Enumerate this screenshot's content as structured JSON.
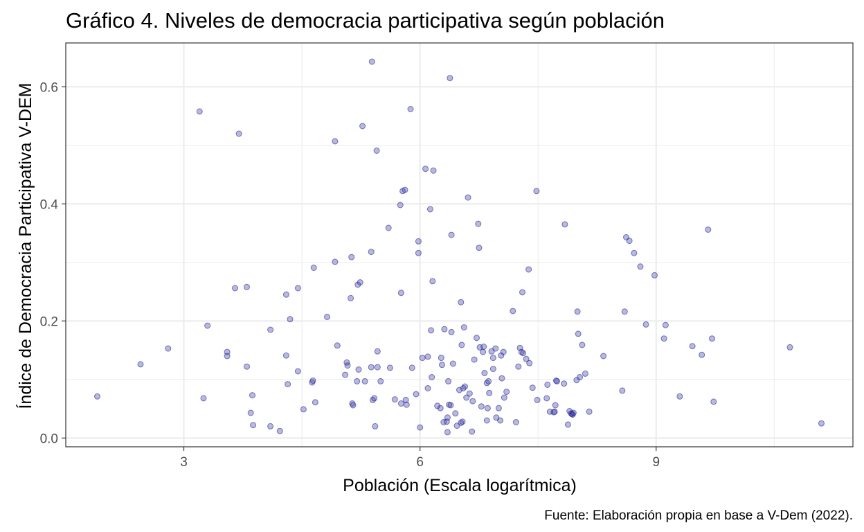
{
  "chart_data": {
    "type": "scatter",
    "title": "Gráfico 4. Niveles de democracia participativa según población",
    "xlabel": "Población (Escala logarítmica)",
    "ylabel": "Índice de Democracia Participativa V-DEM",
    "caption": "Fuente: Elaboración propia en base a V-Dem (2022).",
    "xlim": [
      1.5,
      11.5
    ],
    "ylim": [
      -0.015,
      0.675
    ],
    "x_ticks": [
      3,
      6,
      9
    ],
    "x_tick_labels": [
      "3",
      "6",
      "9"
    ],
    "y_ticks": [
      0.0,
      0.2,
      0.4,
      0.6
    ],
    "y_tick_labels": [
      "0.0",
      "0.2",
      "0.4",
      "0.6"
    ],
    "grid": true,
    "legend": "none",
    "colors": {
      "point_fill": "#3333aa",
      "point_stroke": "#1a1a80",
      "grid": "#ebebeb",
      "panel_border": "#333333",
      "tick_text": "#4d4d4d"
    },
    "points": [
      [
        1.9,
        0.071
      ],
      [
        2.45,
        0.126
      ],
      [
        2.8,
        0.153
      ],
      [
        3.2,
        0.558
      ],
      [
        3.25,
        0.068
      ],
      [
        3.3,
        0.192
      ],
      [
        3.55,
        0.147
      ],
      [
        3.55,
        0.14
      ],
      [
        3.65,
        0.256
      ],
      [
        3.7,
        0.52
      ],
      [
        3.8,
        0.258
      ],
      [
        3.8,
        0.122
      ],
      [
        3.85,
        0.043
      ],
      [
        3.87,
        0.073
      ],
      [
        3.88,
        0.022
      ],
      [
        4.1,
        0.02
      ],
      [
        4.1,
        0.185
      ],
      [
        4.22,
        0.012
      ],
      [
        4.3,
        0.245
      ],
      [
        4.3,
        0.141
      ],
      [
        4.32,
        0.092
      ],
      [
        4.35,
        0.203
      ],
      [
        4.45,
        0.114
      ],
      [
        4.45,
        0.256
      ],
      [
        4.52,
        0.049
      ],
      [
        4.63,
        0.095
      ],
      [
        4.64,
        0.098
      ],
      [
        4.65,
        0.291
      ],
      [
        4.67,
        0.061
      ],
      [
        4.82,
        0.207
      ],
      [
        4.92,
        0.301
      ],
      [
        4.92,
        0.507
      ],
      [
        4.95,
        0.158
      ],
      [
        5.05,
        0.108
      ],
      [
        5.07,
        0.129
      ],
      [
        5.08,
        0.124
      ],
      [
        5.12,
        0.239
      ],
      [
        5.13,
        0.309
      ],
      [
        5.14,
        0.059
      ],
      [
        5.15,
        0.056
      ],
      [
        5.2,
        0.097
      ],
      [
        5.21,
        0.262
      ],
      [
        5.22,
        0.117
      ],
      [
        5.24,
        0.266
      ],
      [
        5.27,
        0.533
      ],
      [
        5.3,
        0.097
      ],
      [
        5.38,
        0.121
      ],
      [
        5.38,
        0.318
      ],
      [
        5.39,
        0.643
      ],
      [
        5.4,
        0.065
      ],
      [
        5.42,
        0.068
      ],
      [
        5.43,
        0.02
      ],
      [
        5.45,
        0.491
      ],
      [
        5.46,
        0.148
      ],
      [
        5.46,
        0.121
      ],
      [
        5.5,
        0.097
      ],
      [
        5.6,
        0.359
      ],
      [
        5.62,
        0.12
      ],
      [
        5.68,
        0.066
      ],
      [
        5.75,
        0.398
      ],
      [
        5.76,
        0.248
      ],
      [
        5.76,
        0.059
      ],
      [
        5.78,
        0.422
      ],
      [
        5.81,
        0.424
      ],
      [
        5.82,
        0.065
      ],
      [
        5.83,
        0.057
      ],
      [
        5.88,
        0.562
      ],
      [
        5.9,
        0.12
      ],
      [
        5.95,
        0.075
      ],
      [
        5.98,
        0.336
      ],
      [
        5.98,
        0.316
      ],
      [
        6.0,
        0.018
      ],
      [
        6.03,
        0.137
      ],
      [
        6.07,
        0.46
      ],
      [
        6.1,
        0.139
      ],
      [
        6.1,
        0.085
      ],
      [
        6.13,
        0.391
      ],
      [
        6.14,
        0.184
      ],
      [
        6.15,
        0.104
      ],
      [
        6.16,
        0.268
      ],
      [
        6.17,
        0.457
      ],
      [
        6.22,
        0.055
      ],
      [
        6.26,
        0.051
      ],
      [
        6.27,
        0.137
      ],
      [
        6.28,
        0.125
      ],
      [
        6.3,
        0.027
      ],
      [
        6.31,
        0.186
      ],
      [
        6.34,
        0.028
      ],
      [
        6.35,
        0.035
      ],
      [
        6.35,
        0.01
      ],
      [
        6.36,
        0.097
      ],
      [
        6.37,
        0.057
      ],
      [
        6.38,
        0.615
      ],
      [
        6.39,
        0.056
      ],
      [
        6.4,
        0.347
      ],
      [
        6.4,
        0.181
      ],
      [
        6.42,
        0.127
      ],
      [
        6.45,
        0.042
      ],
      [
        6.47,
        0.021
      ],
      [
        6.5,
        0.082
      ],
      [
        6.52,
        0.026
      ],
      [
        6.52,
        0.232
      ],
      [
        6.53,
        0.159
      ],
      [
        6.54,
        0.028
      ],
      [
        6.55,
        0.085
      ],
      [
        6.56,
        0.189
      ],
      [
        6.57,
        0.088
      ],
      [
        6.59,
        0.069
      ],
      [
        6.61,
        0.411
      ],
      [
        6.63,
        0.076
      ],
      [
        6.66,
        0.011
      ],
      [
        6.67,
        0.063
      ],
      [
        6.69,
        0.134
      ],
      [
        6.72,
        0.171
      ],
      [
        6.74,
        0.366
      ],
      [
        6.75,
        0.325
      ],
      [
        6.76,
        0.155
      ],
      [
        6.78,
        0.054
      ],
      [
        6.8,
        0.147
      ],
      [
        6.81,
        0.156
      ],
      [
        6.82,
        0.111
      ],
      [
        6.85,
        0.094
      ],
      [
        6.85,
        0.03
      ],
      [
        6.86,
        0.051
      ],
      [
        6.87,
        0.097
      ],
      [
        6.88,
        0.077
      ],
      [
        6.91,
        0.148
      ],
      [
        6.93,
        0.118
      ],
      [
        6.93,
        0.137
      ],
      [
        6.96,
        0.153
      ],
      [
        6.97,
        0.035
      ],
      [
        7.0,
        0.051
      ],
      [
        7.02,
        0.03
      ],
      [
        7.03,
        0.141
      ],
      [
        7.04,
        0.102
      ],
      [
        7.06,
        0.147
      ],
      [
        7.07,
        0.069
      ],
      [
        7.1,
        0.079
      ],
      [
        7.18,
        0.217
      ],
      [
        7.22,
        0.027
      ],
      [
        7.25,
        0.122
      ],
      [
        7.27,
        0.154
      ],
      [
        7.29,
        0.147
      ],
      [
        7.3,
        0.249
      ],
      [
        7.31,
        0.145
      ],
      [
        7.35,
        0.135
      ],
      [
        7.38,
        0.288
      ],
      [
        7.39,
        0.128
      ],
      [
        7.43,
        0.086
      ],
      [
        7.48,
        0.422
      ],
      [
        7.49,
        0.065
      ],
      [
        7.61,
        0.068
      ],
      [
        7.62,
        0.091
      ],
      [
        7.65,
        0.045
      ],
      [
        7.7,
        0.044
      ],
      [
        7.71,
        0.045
      ],
      [
        7.72,
        0.056
      ],
      [
        7.73,
        0.098
      ],
      [
        7.74,
        0.097
      ],
      [
        7.83,
        0.093
      ],
      [
        7.84,
        0.365
      ],
      [
        7.88,
        0.023
      ],
      [
        7.9,
        0.046
      ],
      [
        7.92,
        0.042
      ],
      [
        7.93,
        0.041
      ],
      [
        7.94,
        0.04
      ],
      [
        7.95,
        0.043
      ],
      [
        7.99,
        0.099
      ],
      [
        8.0,
        0.216
      ],
      [
        8.01,
        0.178
      ],
      [
        8.03,
        0.104
      ],
      [
        8.06,
        0.159
      ],
      [
        8.1,
        0.11
      ],
      [
        8.15,
        0.045
      ],
      [
        8.33,
        0.14
      ],
      [
        8.57,
        0.081
      ],
      [
        8.6,
        0.216
      ],
      [
        8.62,
        0.343
      ],
      [
        8.66,
        0.337
      ],
      [
        8.72,
        0.316
      ],
      [
        8.8,
        0.293
      ],
      [
        8.87,
        0.194
      ],
      [
        8.98,
        0.278
      ],
      [
        9.1,
        0.17
      ],
      [
        9.12,
        0.193
      ],
      [
        9.3,
        0.071
      ],
      [
        9.46,
        0.157
      ],
      [
        9.58,
        0.142
      ],
      [
        9.66,
        0.356
      ],
      [
        9.71,
        0.17
      ],
      [
        9.73,
        0.062
      ],
      [
        10.7,
        0.155
      ],
      [
        11.1,
        0.025
      ]
    ]
  }
}
